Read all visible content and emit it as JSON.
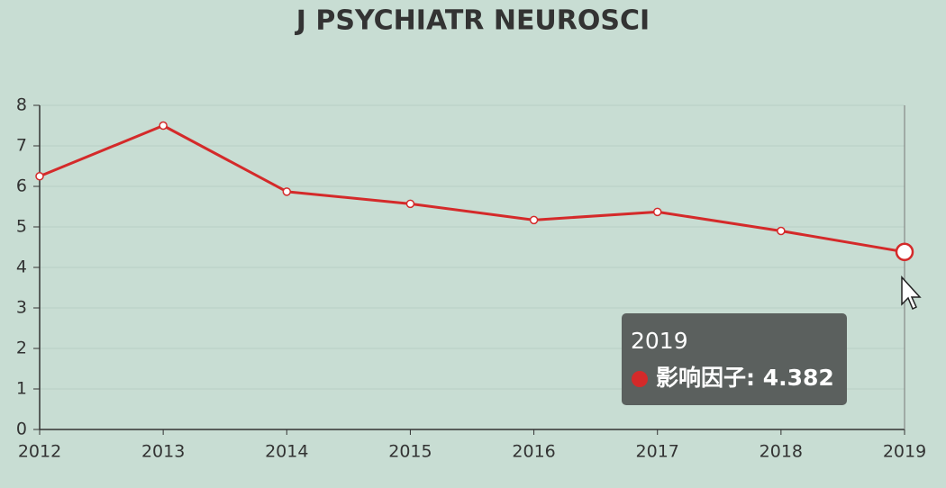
{
  "chart_data": {
    "type": "line",
    "title": "J PSYCHIATR NEUROSCI",
    "categories": [
      "2012",
      "2013",
      "2014",
      "2015",
      "2016",
      "2017",
      "2018",
      "2019"
    ],
    "values": [
      6.25,
      7.5,
      5.87,
      5.57,
      5.17,
      5.37,
      4.9,
      4.382
    ],
    "color": "#d42a2a",
    "ylim": [
      0,
      8
    ],
    "yticks": [
      0,
      1,
      2,
      3,
      4,
      5,
      6,
      7,
      8
    ],
    "grid": true,
    "tooltip": {
      "title": "2019",
      "entry": "影响因子: 4.382"
    }
  }
}
